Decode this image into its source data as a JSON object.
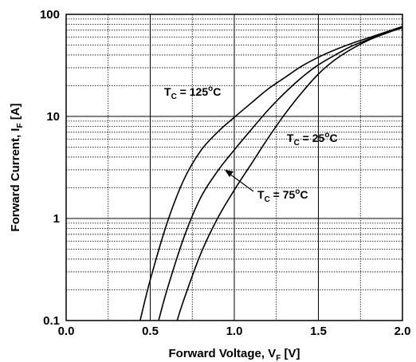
{
  "chart_data": {
    "type": "line",
    "x_scale": "linear",
    "y_scale": "log",
    "xlim": [
      0.0,
      2.0
    ],
    "ylim": [
      0.1,
      100
    ],
    "x_ticks": [
      "0.0",
      "0.5",
      "1.0",
      "1.5",
      "2.0"
    ],
    "y_ticks": [
      "0.1",
      "1",
      "10",
      "100"
    ],
    "xlabel": {
      "text": "Forward Voltage, V",
      "sub": "F",
      "unit": " [V]"
    },
    "ylabel": {
      "text": "Forward Current, I",
      "sub": "F",
      "unit": " [A]"
    },
    "grid": true,
    "series": [
      {
        "name": "T_C = 125°C",
        "label": {
          "main": "T",
          "sub": "C",
          "rest": " = 125",
          "sup": "o",
          "end": "C"
        },
        "points": [
          [
            0.44,
            0.1
          ],
          [
            0.5,
            0.25
          ],
          [
            0.6,
            0.9
          ],
          [
            0.7,
            2.4
          ],
          [
            0.8,
            4.6
          ],
          [
            0.9,
            7.0
          ],
          [
            1.0,
            9.8
          ],
          [
            1.1,
            13.5
          ],
          [
            1.2,
            18.5
          ],
          [
            1.3,
            24
          ],
          [
            1.4,
            31
          ],
          [
            1.5,
            38
          ],
          [
            1.6,
            45
          ],
          [
            1.7,
            52
          ],
          [
            1.8,
            59
          ],
          [
            1.9,
            67
          ],
          [
            2.0,
            76
          ]
        ]
      },
      {
        "name": "T_C = 75°C",
        "label": {
          "main": "T",
          "sub": "C",
          "rest": " = 75",
          "sup": "o",
          "end": "C"
        },
        "points": [
          [
            0.55,
            0.1
          ],
          [
            0.6,
            0.2
          ],
          [
            0.7,
            0.65
          ],
          [
            0.8,
            1.6
          ],
          [
            0.9,
            2.9
          ],
          [
            1.0,
            4.7
          ],
          [
            1.1,
            7.4
          ],
          [
            1.2,
            11.5
          ],
          [
            1.3,
            17
          ],
          [
            1.4,
            24
          ],
          [
            1.5,
            32
          ],
          [
            1.6,
            40
          ],
          [
            1.7,
            49
          ],
          [
            1.8,
            57
          ],
          [
            1.9,
            66
          ],
          [
            2.0,
            75
          ]
        ]
      },
      {
        "name": "T_C = 25°C",
        "label": {
          "main": "T",
          "sub": "C",
          "rest": " = 25",
          "sup": "o",
          "end": "C"
        },
        "points": [
          [
            0.66,
            0.1
          ],
          [
            0.7,
            0.16
          ],
          [
            0.8,
            0.45
          ],
          [
            0.9,
            1.0
          ],
          [
            1.0,
            1.9
          ],
          [
            1.1,
            3.4
          ],
          [
            1.2,
            6.1
          ],
          [
            1.3,
            10.5
          ],
          [
            1.4,
            17
          ],
          [
            1.5,
            26
          ],
          [
            1.6,
            36
          ],
          [
            1.7,
            46
          ],
          [
            1.8,
            56
          ],
          [
            1.9,
            65
          ],
          [
            2.0,
            74
          ]
        ]
      }
    ]
  }
}
